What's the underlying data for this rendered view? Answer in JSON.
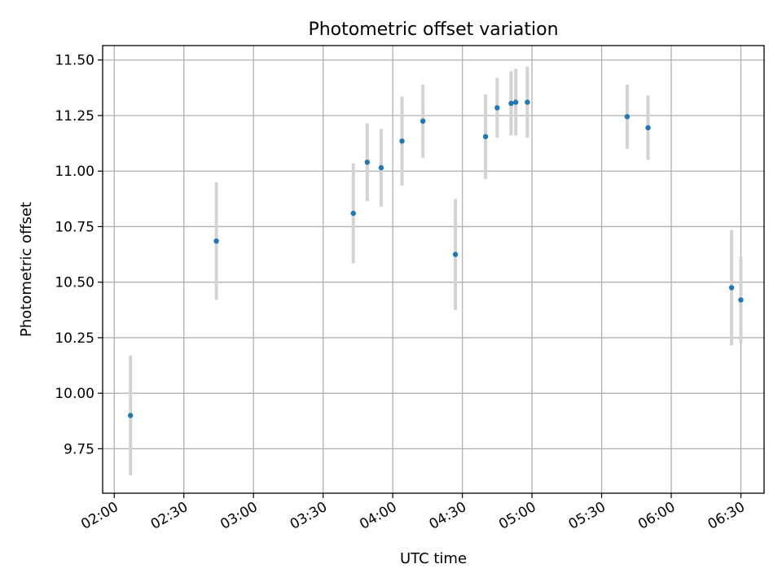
{
  "chart_data": {
    "type": "scatter",
    "title": "Photometric offset variation",
    "xlabel": "UTC time",
    "ylabel": "Photometric offset",
    "xlim": [
      "01:55",
      "06:40"
    ],
    "ylim": [
      9.55,
      11.565
    ],
    "x_ticks": [
      "02:00",
      "02:30",
      "03:00",
      "03:30",
      "04:00",
      "04:30",
      "05:00",
      "05:30",
      "06:00",
      "06:30"
    ],
    "y_ticks": [
      "9.75",
      "10.00",
      "10.25",
      "10.50",
      "10.75",
      "11.00",
      "11.25",
      "11.50"
    ],
    "grid": true,
    "point_color": "#1f77b4",
    "errorbar_color": "#d3d3d3",
    "points": [
      {
        "x": "02:07",
        "y": 9.9,
        "err": 0.27
      },
      {
        "x": "02:44",
        "y": 10.685,
        "err": 0.265
      },
      {
        "x": "03:43",
        "y": 10.81,
        "err": 0.225
      },
      {
        "x": "03:49",
        "y": 11.04,
        "err": 0.175
      },
      {
        "x": "03:55",
        "y": 11.015,
        "err": 0.175
      },
      {
        "x": "04:04",
        "y": 11.135,
        "err": 0.2
      },
      {
        "x": "04:13",
        "y": 11.225,
        "err": 0.165
      },
      {
        "x": "04:27",
        "y": 10.625,
        "err": 0.25
      },
      {
        "x": "04:40",
        "y": 11.155,
        "err": 0.19
      },
      {
        "x": "04:45",
        "y": 11.285,
        "err": 0.135
      },
      {
        "x": "04:51",
        "y": 11.305,
        "err": 0.145
      },
      {
        "x": "04:53",
        "y": 11.31,
        "err": 0.15
      },
      {
        "x": "04:58",
        "y": 11.31,
        "err": 0.16
      },
      {
        "x": "05:41",
        "y": 11.245,
        "err": 0.145
      },
      {
        "x": "05:50",
        "y": 11.195,
        "err": 0.145
      },
      {
        "x": "06:26",
        "y": 10.475,
        "err": 0.26
      },
      {
        "x": "06:30",
        "y": 10.42,
        "err": 0.195
      }
    ]
  }
}
